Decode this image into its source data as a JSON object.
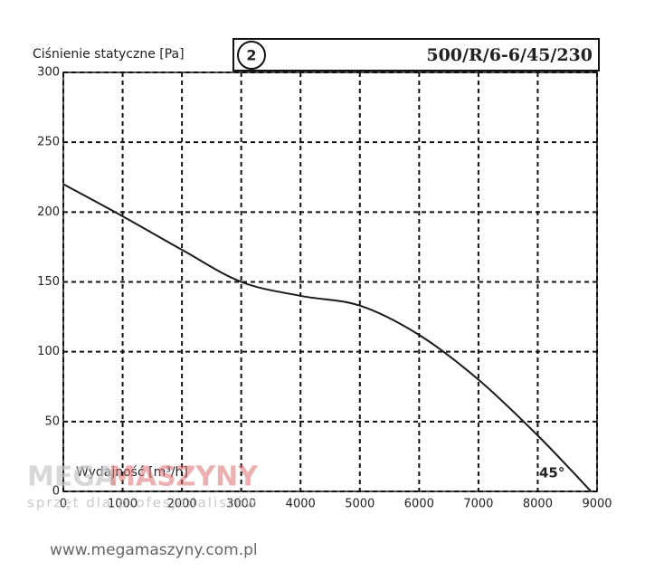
{
  "chart_data": {
    "type": "line",
    "y_label": "Ciśnienie statyczne [Pa]",
    "x_label": "Wydajność [m³/h]",
    "curve_number": "2",
    "model": "500/R/6-6/45/230",
    "annotation": "45°",
    "x": [
      0,
      1000,
      2000,
      3000,
      4000,
      5000,
      6000,
      7000,
      8000,
      8900
    ],
    "series": [
      {
        "name": "500/R/6-6/45/230",
        "color": "#1a1a1a",
        "values": [
          220,
          197,
          173,
          150,
          140,
          133,
          112,
          80,
          40,
          0
        ]
      }
    ],
    "xlim": [
      0,
      9000
    ],
    "ylim": [
      0,
      300
    ],
    "xticks": [
      0,
      1000,
      2000,
      3000,
      4000,
      5000,
      6000,
      7000,
      8000,
      9000
    ],
    "yticks": [
      0,
      50,
      100,
      150,
      200,
      250,
      300
    ],
    "grid": true
  },
  "watermark": {
    "brand_left": "MEGA",
    "brand_right": "MASZYNY",
    "tagline": "sprzęt dla profesjonalistów",
    "url": "www.megamaszyny.com.pl"
  }
}
